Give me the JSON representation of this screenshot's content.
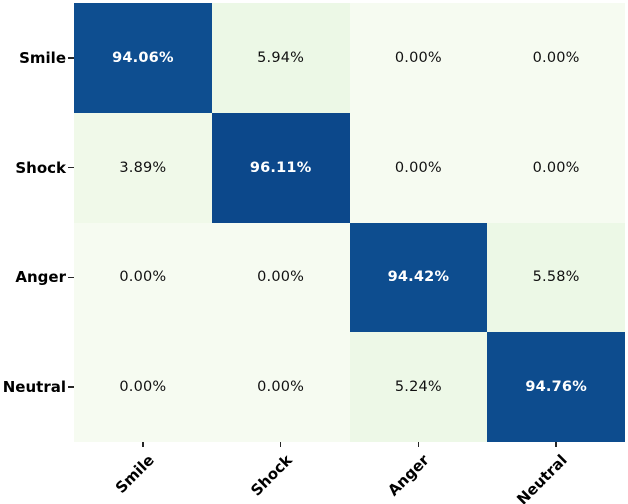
{
  "chart_data": {
    "type": "heatmap",
    "subtype": "confusion-matrix",
    "title": "",
    "xlabel": "",
    "ylabel": "",
    "rows": [
      "Smile",
      "Shock",
      "Anger",
      "Neutral"
    ],
    "columns": [
      "Smile",
      "Shock",
      "Anger",
      "Neutral"
    ],
    "values_percent": [
      [
        94.06,
        5.94,
        0.0,
        0.0
      ],
      [
        3.89,
        96.11,
        0.0,
        0.0
      ],
      [
        0.0,
        0.0,
        94.42,
        5.58
      ],
      [
        0.0,
        0.0,
        5.24,
        94.76
      ]
    ],
    "cell_labels": [
      [
        "94.06%",
        "5.94%",
        "0.00%",
        "0.00%"
      ],
      [
        "3.89%",
        "96.11%",
        "0.00%",
        "0.00%"
      ],
      [
        "0.00%",
        "0.00%",
        "94.42%",
        "5.58%"
      ],
      [
        "0.00%",
        "0.00%",
        "5.24%",
        "94.76%"
      ]
    ],
    "cell_colors": [
      [
        "#0e4e90",
        "#ecf8e6",
        "#f6fbf1",
        "#f6fbf1"
      ],
      [
        "#f0f9e9",
        "#0c488b",
        "#f6fbf1",
        "#f6fbf1"
      ],
      [
        "#f6fbf1",
        "#f6fbf1",
        "#0d4d8f",
        "#ecf8e6"
      ],
      [
        "#f6fbf1",
        "#f6fbf1",
        "#edf8e7",
        "#0d4c8e"
      ]
    ],
    "diagonal_text_color": "#ffffff",
    "offdiagonal_text_color": "#111111",
    "axis_label_color": "#000000",
    "tick_color": "#262626",
    "background": "#ffffff",
    "colormap": "GnBu-like (pale green to dark blue)",
    "legend": "none",
    "grid": "off"
  }
}
